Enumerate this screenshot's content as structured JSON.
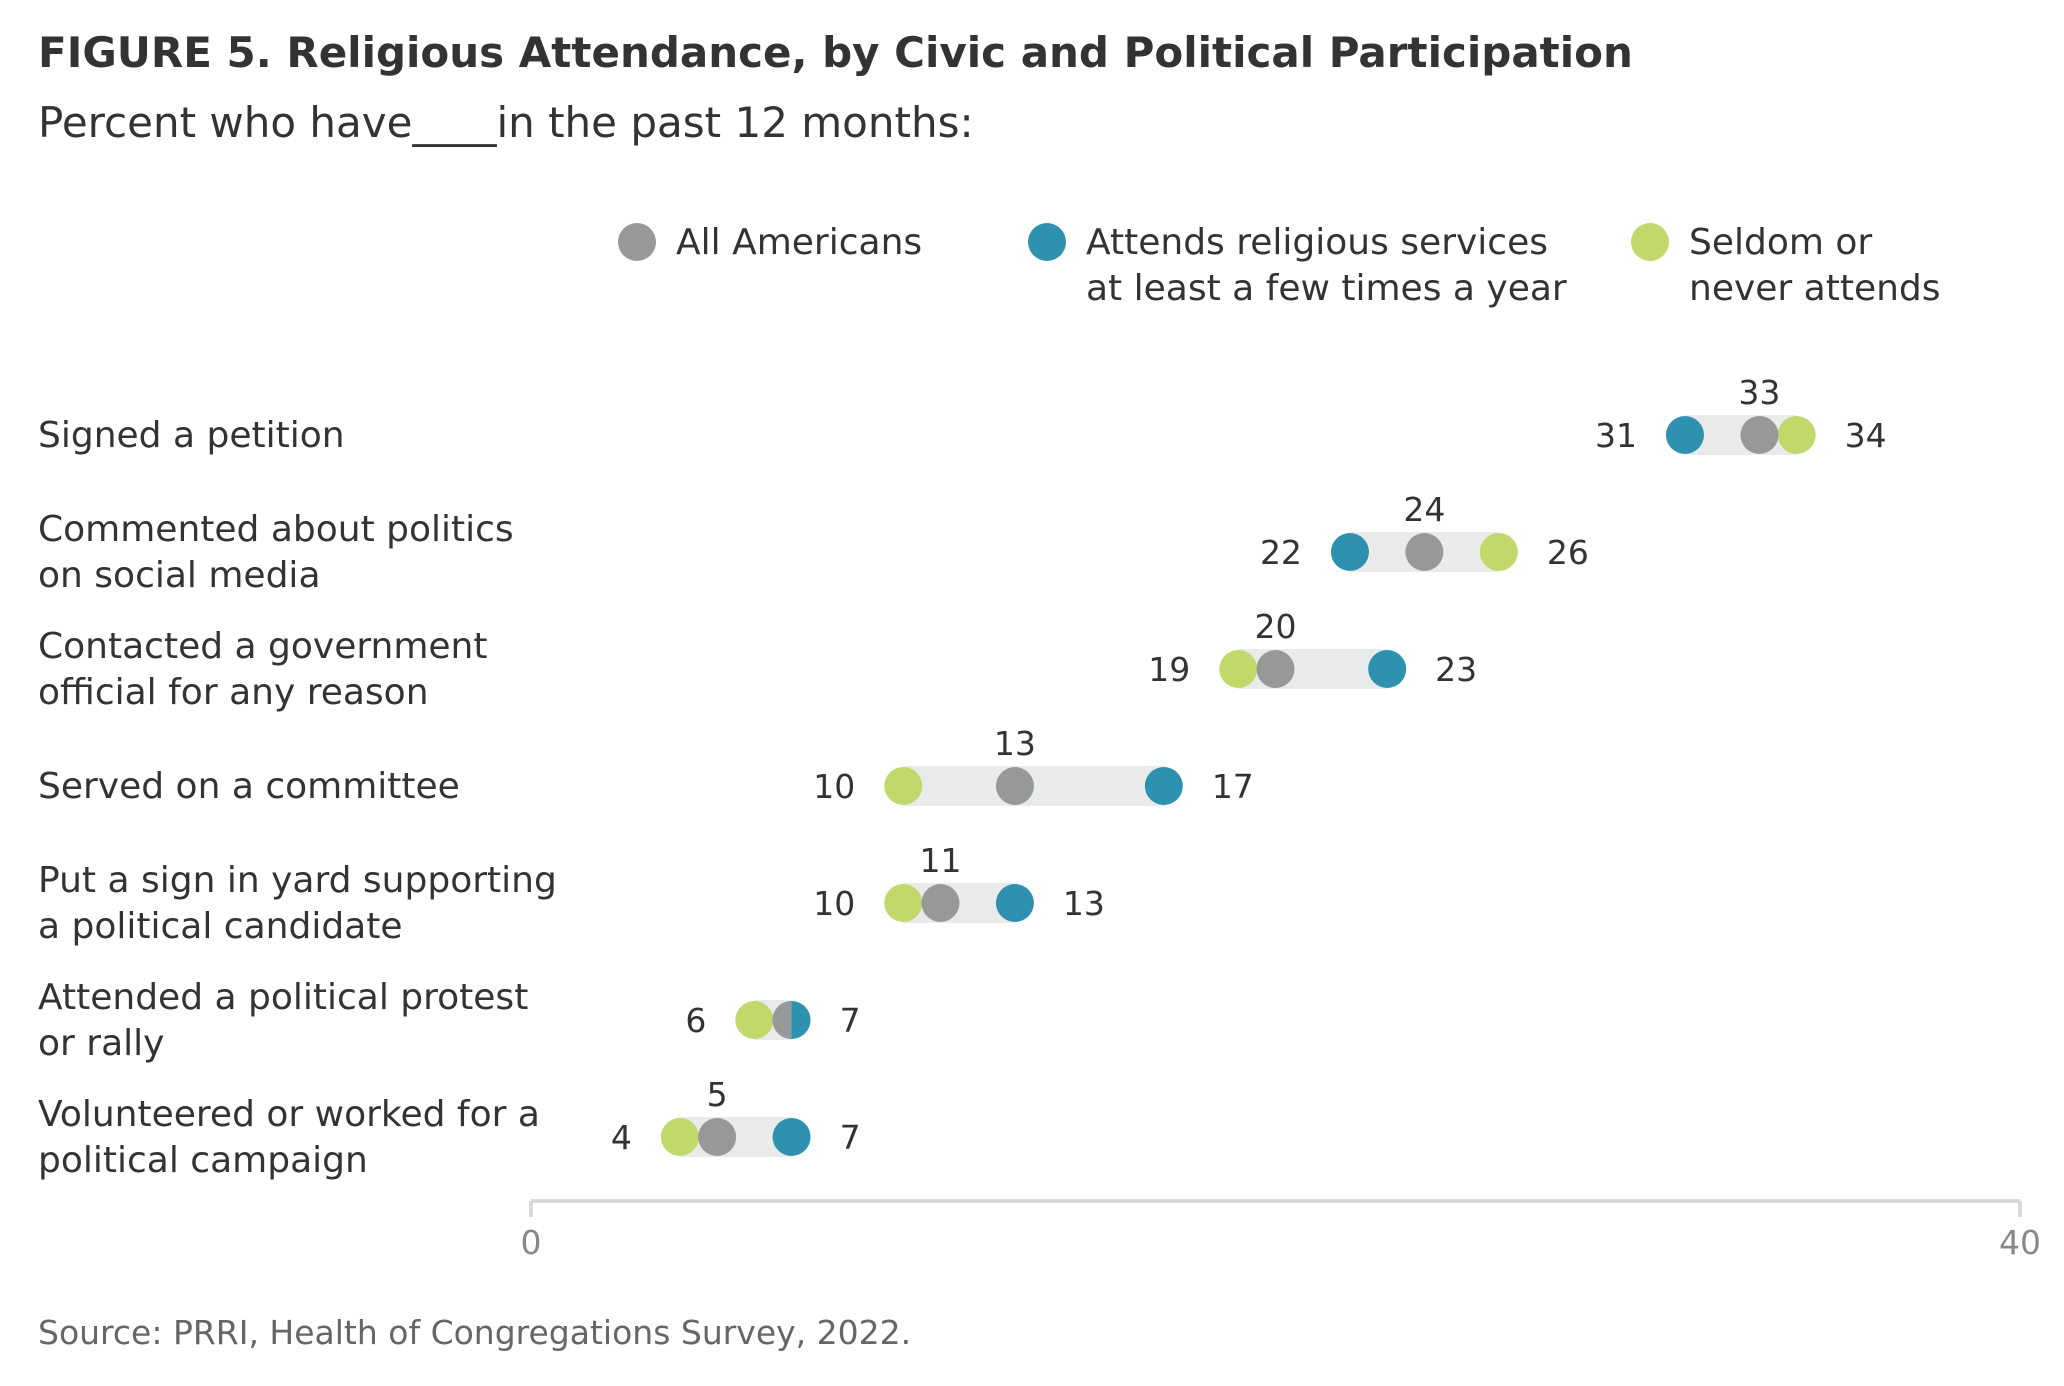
{
  "title": "FIGURE 5.  Religious Attendance, by Civic and Political Participation",
  "subtitle": "Percent who have____in the past 12 months:",
  "source": "Source: PRRI, Health of Congregations Survey, 2022.",
  "colors": {
    "all": "#989898",
    "attends": "#2e91b0",
    "seldom": "#c1d86b",
    "range": "#e9eaea",
    "axis": "#d9d9d9",
    "label": "#333333",
    "tick": "#888888"
  },
  "legend": [
    {
      "key": "all",
      "lines": [
        "All Americans"
      ]
    },
    {
      "key": "attends",
      "lines": [
        "Attends religious services",
        "at least a few times a year"
      ]
    },
    {
      "key": "seldom",
      "lines": [
        "Seldom or",
        "never attends"
      ]
    }
  ],
  "chart_data": {
    "type": "dot-range",
    "xlim": [
      0,
      40
    ],
    "ticks": [
      "0",
      "40"
    ],
    "series": [
      {
        "key": "all",
        "name": "All Americans",
        "values": [
          33,
          24,
          20,
          13,
          11,
          7,
          5
        ]
      },
      {
        "key": "attends",
        "name": "Attends religious services at least a few times a year",
        "values": [
          31,
          22,
          23,
          17,
          13,
          7,
          7
        ]
      },
      {
        "key": "seldom",
        "name": "Seldom or never attends",
        "values": [
          34,
          26,
          19,
          10,
          10,
          6,
          4
        ]
      }
    ],
    "categories": [
      {
        "lines": [
          "Signed a petition"
        ],
        "labels": {
          "top": "33",
          "left": "31",
          "right": "34"
        }
      },
      {
        "lines": [
          "Commented about politics",
          "on social media"
        ],
        "labels": {
          "top": "24",
          "left": "22",
          "right": "26"
        }
      },
      {
        "lines": [
          "Contacted a government",
          "official for any reason"
        ],
        "labels": {
          "top": "20",
          "left": "19",
          "right": "23"
        }
      },
      {
        "lines": [
          "Served on a committee"
        ],
        "labels": {
          "top": "13",
          "left": "10",
          "right": "17"
        }
      },
      {
        "lines": [
          "Put a sign in yard supporting",
          "a political candidate"
        ],
        "labels": {
          "top": "11",
          "left": "10",
          "right": "13"
        }
      },
      {
        "lines": [
          "Attended a political protest",
          "or rally"
        ],
        "labels": {
          "top": "",
          "left": "6",
          "right": "7"
        }
      },
      {
        "lines": [
          "Volunteered or worked for a",
          "political campaign"
        ],
        "labels": {
          "top": "5",
          "left": "4",
          "right": "7"
        }
      }
    ]
  }
}
